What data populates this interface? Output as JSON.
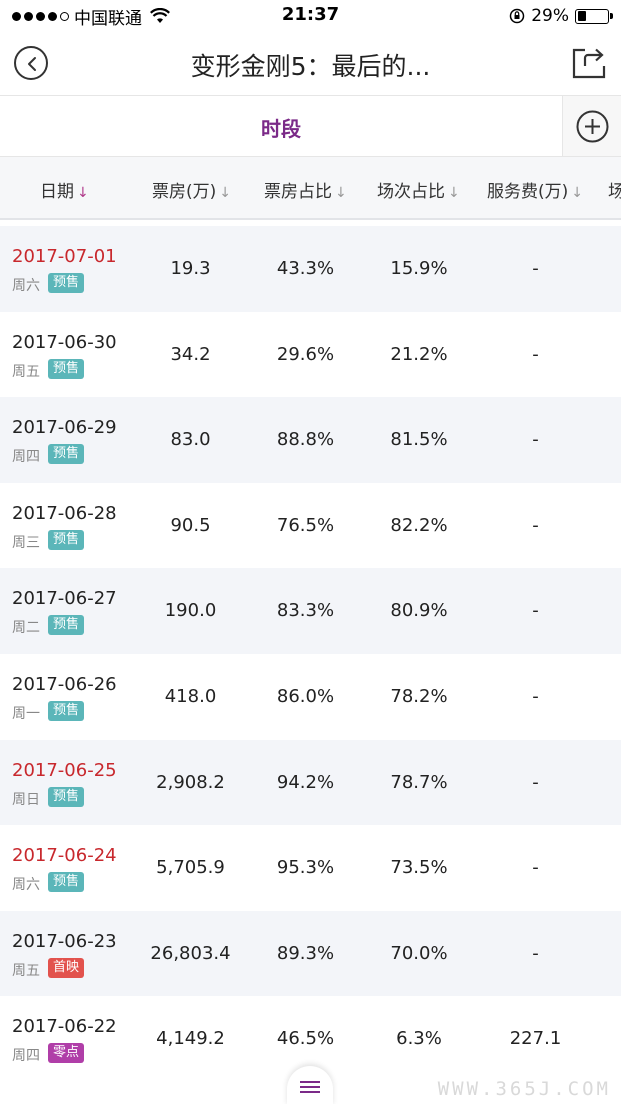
{
  "status_bar": {
    "carrier": "中国联通",
    "time": "21:37",
    "battery_percent": "29%",
    "battery_level": 0.29,
    "signal_bars_filled": 4,
    "signal_bars_total": 5
  },
  "nav": {
    "title": "变形金刚5：最后的...",
    "back_icon": "chevron-left-circle",
    "share_icon": "share-export"
  },
  "tab": {
    "label": "时段",
    "add_icon": "plus-circle"
  },
  "header": {
    "col_date": "日期",
    "col_box_office": "票房(万)",
    "col_box_share": "票房占比",
    "col_show_share": "场次占比",
    "col_service_fee": "服务费(万)",
    "col_more": "场",
    "arrow": "↓"
  },
  "rows": [
    {
      "date": "2017-07-01",
      "weekday": "周六",
      "badge": "预售",
      "box": "19.3",
      "box_share": "43.3%",
      "show_share": "15.9%",
      "fee": "-"
    },
    {
      "date": "2017-06-30",
      "weekday": "周五",
      "badge": "预售",
      "box": "34.2",
      "box_share": "29.6%",
      "show_share": "21.2%",
      "fee": "-"
    },
    {
      "date": "2017-06-29",
      "weekday": "周四",
      "badge": "预售",
      "box": "83.0",
      "box_share": "88.8%",
      "show_share": "81.5%",
      "fee": "-"
    },
    {
      "date": "2017-06-28",
      "weekday": "周三",
      "badge": "预售",
      "box": "90.5",
      "box_share": "76.5%",
      "show_share": "82.2%",
      "fee": "-"
    },
    {
      "date": "2017-06-27",
      "weekday": "周二",
      "badge": "预售",
      "box": "190.0",
      "box_share": "83.3%",
      "show_share": "80.9%",
      "fee": "-"
    },
    {
      "date": "2017-06-26",
      "weekday": "周一",
      "badge": "预售",
      "box": "418.0",
      "box_share": "86.0%",
      "show_share": "78.2%",
      "fee": "-"
    },
    {
      "date": "2017-06-25",
      "weekday": "周日",
      "badge": "预售",
      "box": "2,908.2",
      "box_share": "94.2%",
      "show_share": "78.7%",
      "fee": "-"
    },
    {
      "date": "2017-06-24",
      "weekday": "周六",
      "badge": "预售",
      "box": "5,705.9",
      "box_share": "95.3%",
      "show_share": "73.5%",
      "fee": "-"
    },
    {
      "date": "2017-06-23",
      "weekday": "周五",
      "badge": "首映",
      "box": "26,803.4",
      "box_share": "89.3%",
      "show_share": "70.0%",
      "fee": "-"
    },
    {
      "date": "2017-06-22",
      "weekday": "周四",
      "badge": "零点",
      "box": "4,149.2",
      "box_share": "46.5%",
      "show_share": "6.3%",
      "fee": "227.1"
    }
  ],
  "watermark": "WWW.365J.COM",
  "colors": {
    "accent_purple": "#7b2a88",
    "weekend_red": "#c8282d",
    "presale_badge": "#5bb6b9",
    "premiere_badge": "#e2524d",
    "midnight_badge": "#b03ea8"
  }
}
